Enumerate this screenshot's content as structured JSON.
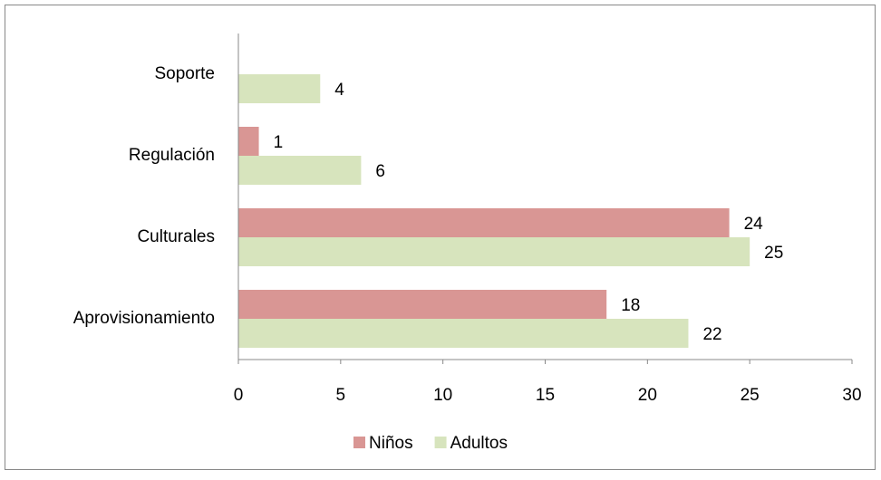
{
  "chart_data": {
    "type": "hbar",
    "categories": [
      "Aprovisionamiento",
      "Culturales",
      "Regulación",
      "Soporte"
    ],
    "series": [
      {
        "name": "Niños",
        "color": "#d99694",
        "values": [
          18,
          24,
          1,
          null
        ]
      },
      {
        "name": "Adultos",
        "color": "#d7e4bd",
        "values": [
          22,
          25,
          6,
          4
        ]
      }
    ],
    "xlim": [
      0,
      30
    ],
    "xticks": [
      0,
      5,
      10,
      15,
      20,
      25,
      30
    ],
    "legend": "bottom"
  }
}
